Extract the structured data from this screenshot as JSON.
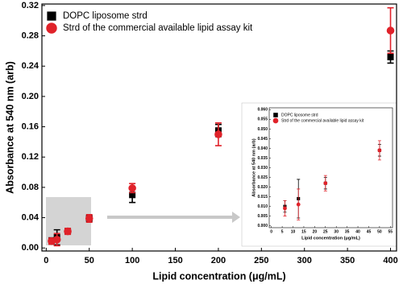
{
  "chart_data": [
    {
      "type": "scatter",
      "x_label": "Lipid concentration (μg/mL)",
      "y_label": "Absorbance at 540 nm (arb)",
      "xlim": [
        -5,
        407
      ],
      "xticks": [
        0,
        50,
        100,
        150,
        200,
        250,
        300,
        350,
        400
      ],
      "ylim": [
        -0.004,
        0.322
      ],
      "yticks": [
        {
          "value": 0,
          "label": "0.00"
        },
        {
          "value": 0.04,
          "label": "0.04"
        },
        {
          "value": 0.08,
          "label": "0.08"
        },
        {
          "value": 0.12,
          "label": "0.12"
        },
        {
          "value": 0.16,
          "label": "0.16"
        },
        {
          "value": 0.2,
          "label": "0.20"
        },
        {
          "value": 0.24,
          "label": "0.24"
        },
        {
          "value": 0.28,
          "label": "0.28"
        },
        {
          "value": 0.32,
          "label": "0.32"
        }
      ],
      "legend": "upper left",
      "series": [
        {
          "name": "DOPC liposome strd",
          "color": "#000000",
          "marker": "square",
          "x": [
            6.25,
            12.5,
            25,
            50,
            100,
            200,
            400
          ],
          "values": [
            0.01,
            0.014,
            0.022,
            0.039,
            0.07,
            0.155,
            0.252
          ],
          "errors": [
            0.003,
            0.01,
            0.003,
            0.003,
            0.01,
            0.008,
            0.008
          ]
        },
        {
          "name": "Strd of the commercial available lipid assay kit",
          "color": "#e0222a",
          "marker": "circle",
          "x": [
            6.25,
            12.5,
            25,
            50,
            100,
            200,
            400
          ],
          "values": [
            0.009,
            0.011,
            0.022,
            0.039,
            0.079,
            0.15,
            0.287
          ],
          "errors": [
            0.004,
            0.008,
            0.004,
            0.005,
            0.006,
            0.015,
            0.03
          ]
        }
      ]
    },
    {
      "type": "scatter",
      "x_label": "Lipid concentration (μg/mL)",
      "y_label": "Absorbance at 540 nm (arb)",
      "xlim": [
        -1,
        56
      ],
      "xticks": [
        0,
        5,
        10,
        15,
        20,
        25,
        30,
        35,
        40,
        45,
        50,
        55
      ],
      "ylim": [
        -0.001,
        0.061
      ],
      "yticks": [
        {
          "value": 0,
          "label": "0.000"
        },
        {
          "value": 0.005,
          "label": "0.005"
        },
        {
          "value": 0.01,
          "label": "0.010"
        },
        {
          "value": 0.015,
          "label": "0.015"
        },
        {
          "value": 0.02,
          "label": "0.020"
        },
        {
          "value": 0.025,
          "label": "0.025"
        },
        {
          "value": 0.03,
          "label": "0.030"
        },
        {
          "value": 0.035,
          "label": "0.035"
        },
        {
          "value": 0.04,
          "label": "0.040"
        },
        {
          "value": 0.045,
          "label": "0.045"
        },
        {
          "value": 0.05,
          "label": "0.050"
        },
        {
          "value": 0.055,
          "label": "0.055"
        },
        {
          "value": 0.06,
          "label": "0.060"
        }
      ],
      "legend": "upper left",
      "series": [
        {
          "name": "DOPC liposome strd",
          "color": "#000000",
          "marker": "square",
          "x": [
            6.25,
            12.5,
            25,
            50
          ],
          "values": [
            0.01,
            0.014,
            0.022,
            0.039
          ],
          "errors": [
            0.003,
            0.01,
            0.003,
            0.003
          ]
        },
        {
          "name": "Strd of the commercial available lipid assay kit",
          "color": "#e0222a",
          "marker": "circle",
          "x": [
            6.25,
            12.5,
            25,
            50
          ],
          "values": [
            0.009,
            0.011,
            0.022,
            0.039
          ],
          "errors": [
            0.004,
            0.008,
            0.004,
            0.005
          ]
        }
      ]
    }
  ]
}
